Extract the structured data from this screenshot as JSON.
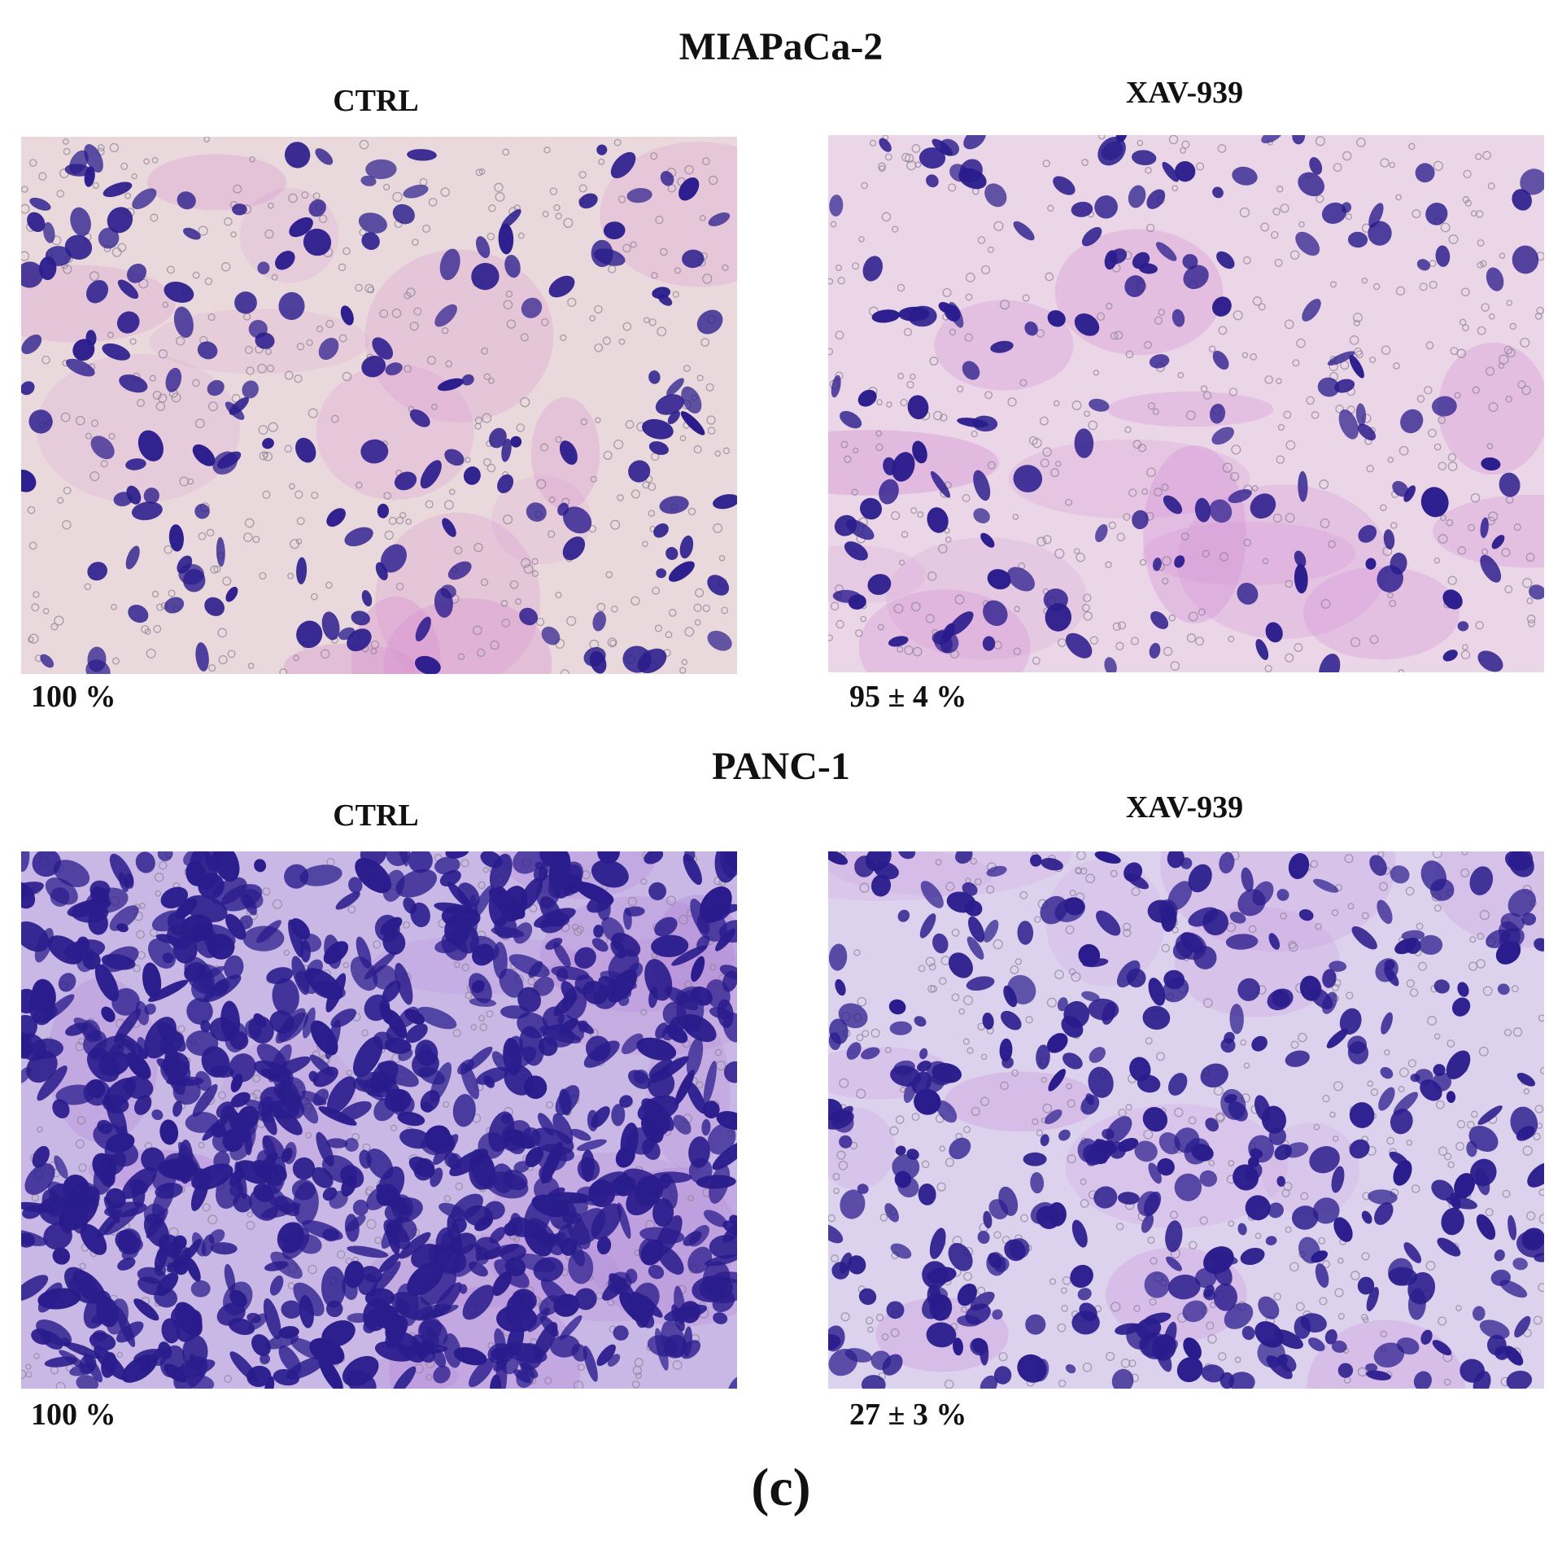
{
  "figure_label": "(c)",
  "sections": [
    {
      "title": "MIAPaCa-2",
      "panels": [
        {
          "label": "CTRL",
          "value": "100 %",
          "density": 0.16,
          "tint": "#ead9dc",
          "stain": "#d790cf"
        },
        {
          "label": "XAV-939",
          "value": "95 ± 4 %",
          "density": 0.14,
          "tint": "#ead6e6",
          "stain": "#d58ed6"
        }
      ]
    },
    {
      "title": "PANC-1",
      "panels": [
        {
          "label": "CTRL",
          "value": "100 %",
          "density": 0.92,
          "tint": "#c9b8e6",
          "stain": "#b487d8"
        },
        {
          "label": "XAV-939",
          "value": "27 ± 3 %",
          "density": 0.4,
          "tint": "#ddd2ee",
          "stain": "#c99ae0"
        }
      ]
    }
  ],
  "cell_color": "#2a1c8c"
}
